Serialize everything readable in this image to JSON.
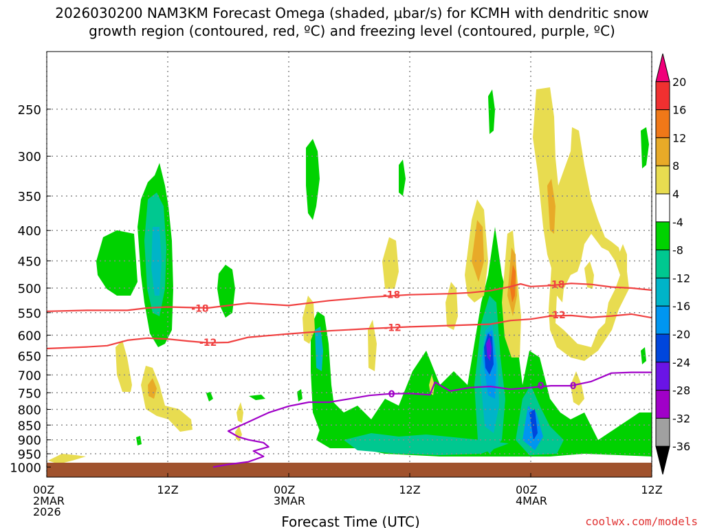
{
  "chart_data": {
    "type": "heatmap",
    "title_line1": "2026030200 NAM3KM Forecast Omega (shaded, μbar/s) for KCMH with dendritic snow",
    "title_line2": "growth region (contoured, red, ºC) and freezing level (contoured, purple, ºC)",
    "xlabel": "Forecast Time (UTC)",
    "credit": "coolwx.com/models",
    "x_hours_range": [
      0,
      60
    ],
    "y_range_hpa": [
      1040,
      200
    ],
    "x_ticks": [
      {
        "hour": 0,
        "lines": [
          "00Z",
          "2MAR",
          "2026"
        ]
      },
      {
        "hour": 12,
        "lines": [
          "12Z"
        ]
      },
      {
        "hour": 24,
        "lines": [
          "00Z",
          "3MAR"
        ]
      },
      {
        "hour": 36,
        "lines": [
          "12Z"
        ]
      },
      {
        "hour": 48,
        "lines": [
          "00Z",
          "4MAR"
        ]
      },
      {
        "hour": 60,
        "lines": [
          "12Z"
        ]
      }
    ],
    "y_ticks": [
      250,
      300,
      350,
      400,
      450,
      500,
      550,
      600,
      650,
      700,
      750,
      800,
      850,
      900,
      950,
      1000
    ],
    "grid": true,
    "colorbar": {
      "labels": [
        "20",
        "16",
        "12",
        "8",
        "4",
        "-4",
        "-8",
        "-12",
        "-16",
        "-20",
        "-24",
        "-28",
        "-32",
        "-36"
      ],
      "colors": [
        "#f0007a",
        "#f03030",
        "#f07818",
        "#e8aa28",
        "#e8dc50",
        "#ffffff",
        "#00d200",
        "#00c890",
        "#00b4c8",
        "#0096f0",
        "#0046dc",
        "#6a14e6",
        "#a000c8",
        "#a0a0a0",
        "#000000"
      ]
    },
    "terrain_color": "#a0522d",
    "contours": [
      {
        "label": "-18",
        "color": "#f04040",
        "label_positions": [
          [
            15.2,
            541
          ],
          [
            34.2,
            513
          ],
          [
            50.5,
            493
          ]
        ],
        "points": [
          [
            0,
            547
          ],
          [
            4,
            545
          ],
          [
            8,
            545
          ],
          [
            10,
            540
          ],
          [
            12,
            538
          ],
          [
            16,
            540
          ],
          [
            18,
            535
          ],
          [
            20,
            530
          ],
          [
            24,
            535
          ],
          [
            28,
            525
          ],
          [
            32,
            518
          ],
          [
            36,
            513
          ],
          [
            40,
            511
          ],
          [
            42,
            509
          ],
          [
            44,
            505
          ],
          [
            46,
            497
          ],
          [
            47,
            492
          ],
          [
            48,
            497
          ],
          [
            50,
            495
          ],
          [
            52,
            491
          ],
          [
            54,
            493
          ],
          [
            56,
            498
          ],
          [
            58,
            500
          ],
          [
            60,
            504
          ]
        ]
      },
      {
        "label": "-12",
        "color": "#f04040",
        "label_positions": [
          [
            16.0,
            617
          ],
          [
            34.3,
            583
          ],
          [
            50.6,
            555
          ]
        ],
        "points": [
          [
            0,
            632
          ],
          [
            4,
            628
          ],
          [
            6,
            625
          ],
          [
            8,
            612
          ],
          [
            10,
            607
          ],
          [
            12,
            609
          ],
          [
            14,
            614
          ],
          [
            16,
            618
          ],
          [
            18,
            617
          ],
          [
            20,
            605
          ],
          [
            24,
            597
          ],
          [
            28,
            590
          ],
          [
            32,
            585
          ],
          [
            36,
            581
          ],
          [
            40,
            578
          ],
          [
            44,
            575
          ],
          [
            46,
            567
          ],
          [
            48,
            564
          ],
          [
            50,
            557
          ],
          [
            52,
            556
          ],
          [
            54,
            560
          ],
          [
            56,
            557
          ],
          [
            58,
            553
          ],
          [
            60,
            561
          ]
        ]
      },
      {
        "label": "0",
        "color": "#a000c8",
        "label_positions": [
          [
            34.2,
            753
          ],
          [
            49.0,
            730
          ],
          [
            52.2,
            730
          ]
        ],
        "points": [
          [
            16.5,
            1000
          ],
          [
            18,
            990
          ],
          [
            20,
            980
          ],
          [
            21.5,
            960
          ],
          [
            20.5,
            940
          ],
          [
            22,
            925
          ],
          [
            21.5,
            910
          ],
          [
            20,
            900
          ],
          [
            19,
            890
          ],
          [
            18,
            870
          ],
          [
            20,
            840
          ],
          [
            22,
            810
          ],
          [
            24,
            790
          ],
          [
            26,
            778
          ],
          [
            28,
            778
          ],
          [
            30,
            768
          ],
          [
            32,
            758
          ],
          [
            34,
            753
          ],
          [
            36,
            752
          ],
          [
            38,
            756
          ],
          [
            38.5,
            720
          ],
          [
            40,
            745
          ],
          [
            42,
            735
          ],
          [
            44,
            732
          ],
          [
            46,
            740
          ],
          [
            48,
            735
          ],
          [
            50,
            730
          ],
          [
            52,
            730
          ],
          [
            54,
            718
          ],
          [
            56,
            695
          ],
          [
            58,
            693
          ],
          [
            60,
            693
          ]
        ]
      }
    ]
  }
}
